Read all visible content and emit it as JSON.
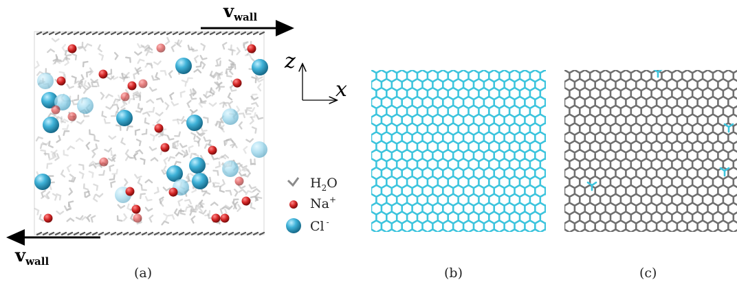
{
  "panel_a": {
    "caption": "(a)",
    "wall_label_main": "v",
    "wall_label_sub": "wall",
    "legend": [
      {
        "key": "water",
        "text_main": "H",
        "text_sub": "2",
        "text_tail": "O"
      },
      {
        "key": "sodium",
        "text_main": "Na",
        "text_sup": "+"
      },
      {
        "key": "chloride",
        "text_main": "Cl",
        "text_sup": "-"
      }
    ],
    "colors": {
      "water": "#b9b9b9",
      "sodium": "#c81e1e",
      "chloride": "#2fa3cc",
      "wall": "#555555"
    }
  },
  "axes": {
    "z_label": "z",
    "x_label": "x"
  },
  "panel_b": {
    "caption": "(b)",
    "lattice_color": "#3cc4dd"
  },
  "panel_c": {
    "caption": "(c)",
    "lattice_color": "#6f6f6f",
    "defect_color": "#3cc4dd"
  }
}
